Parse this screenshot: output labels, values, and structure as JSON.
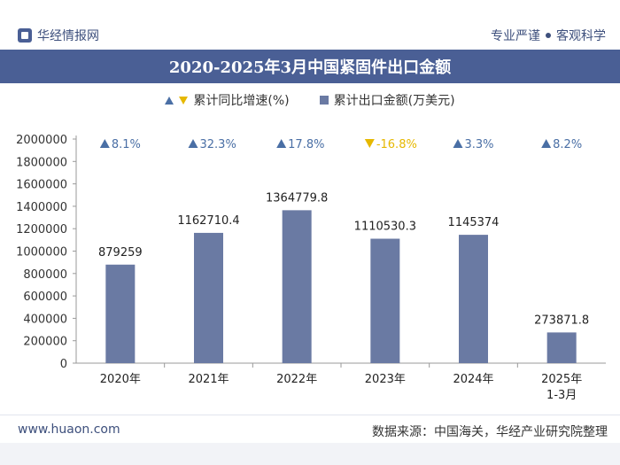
{
  "header": {
    "brand": "华经情报网",
    "slogan_left": "专业严谨",
    "slogan_right": "客观科学"
  },
  "chart_data": {
    "type": "bar",
    "title": "2020-2025年3月中国紧固件出口金额",
    "categories": [
      "2020年",
      "2021年",
      "2022年",
      "2023年",
      "2024年",
      "2025年\n1-3月"
    ],
    "series": [
      {
        "name": "累计出口金额(万美元)",
        "values": [
          879259,
          1162710.4,
          1364779.8,
          1110530.3,
          1145374,
          273871.8
        ],
        "value_labels": [
          "879259",
          "1162710.4",
          "1364779.8",
          "1110530.3",
          "1145374",
          "273871.8"
        ],
        "color": "#6a7aa3"
      },
      {
        "name": "累计同比增速(%)",
        "values": [
          8.1,
          32.3,
          17.8,
          -16.8,
          3.3,
          8.2
        ],
        "value_labels": [
          "8.1%",
          "32.3%",
          "17.8%",
          "-16.8%",
          "3.3%",
          "8.2%"
        ],
        "up_color": "#4a6fa5",
        "down_color": "#e6b800"
      }
    ],
    "ylim": [
      0,
      2000000
    ],
    "yticks": [
      0,
      200000,
      400000,
      600000,
      800000,
      1000000,
      1200000,
      1400000,
      1600000,
      1800000,
      2000000
    ],
    "grid": false,
    "legend_position": "top"
  },
  "footer": {
    "website": "www.huaon.com",
    "source": "数据来源：中国海关，华经产业研究院整理"
  }
}
